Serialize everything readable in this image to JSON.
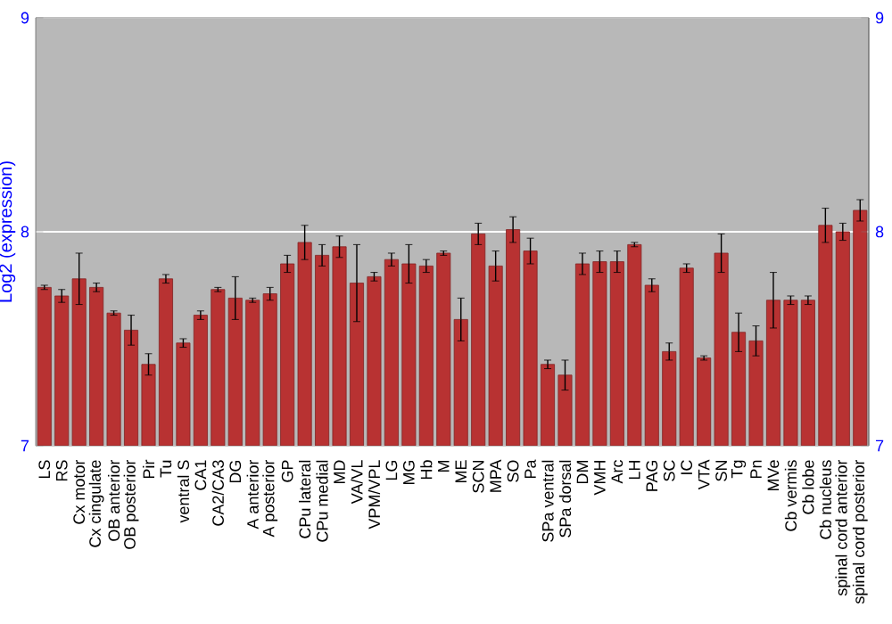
{
  "chart_data": {
    "type": "bar",
    "ylabel": "Log2 (expression)",
    "categories": [
      "LS",
      "RS",
      "Cx motor",
      "Cx cingulate",
      "OB anterior",
      "OB posterior",
      "Pir",
      "Tu",
      "ventral S",
      "CA1",
      "CA2/CA3",
      "DG",
      "A anterior",
      "A posterior",
      "GP",
      "CPu lateral",
      "CPu medial",
      "MD",
      "VA/VL",
      "VPM/VPL",
      "LG",
      "MG",
      "Hb",
      "M",
      "ME",
      "SCN",
      "MPA",
      "SO",
      "Pa",
      "SPa ventral",
      "SPa dorsal",
      "DM",
      "VMH",
      "Arc",
      "LH",
      "PAG",
      "SC",
      "IC",
      "VTA",
      "SN",
      "Tg",
      "Pn",
      "MVe",
      "Cb vermis",
      "Cb lobe",
      "Cb nucleus",
      "spinal cord anterior",
      "spinal cord posterior"
    ],
    "values": [
      7.74,
      7.7,
      7.78,
      7.74,
      7.62,
      7.54,
      7.38,
      7.78,
      7.48,
      7.61,
      7.73,
      7.69,
      7.68,
      7.71,
      7.85,
      7.95,
      7.89,
      7.93,
      7.76,
      7.79,
      7.87,
      7.85,
      7.84,
      7.9,
      7.59,
      7.99,
      7.84,
      8.01,
      7.91,
      7.38,
      7.33,
      7.85,
      7.86,
      7.86,
      7.94,
      7.75,
      7.44,
      7.83,
      7.41,
      7.9,
      7.53,
      7.49,
      7.68,
      7.68,
      7.68,
      8.03,
      8.0,
      8.1
    ],
    "errors": [
      0.01,
      0.03,
      0.12,
      0.02,
      0.01,
      0.07,
      0.05,
      0.02,
      0.02,
      0.02,
      0.01,
      0.1,
      0.01,
      0.03,
      0.04,
      0.08,
      0.05,
      0.05,
      0.18,
      0.02,
      0.03,
      0.09,
      0.03,
      0.01,
      0.1,
      0.05,
      0.07,
      0.06,
      0.06,
      0.02,
      0.07,
      0.05,
      0.05,
      0.05,
      0.01,
      0.03,
      0.04,
      0.02,
      0.01,
      0.09,
      0.09,
      0.07,
      0.13,
      0.02,
      0.02,
      0.08,
      0.04,
      0.05
    ],
    "color": "#b83232",
    "ylim": [
      7,
      9
    ],
    "yticks": [
      7,
      8,
      9
    ],
    "y2lim": [
      7,
      9
    ],
    "y2ticks": [
      7,
      8,
      9
    ],
    "grid": "y"
  }
}
